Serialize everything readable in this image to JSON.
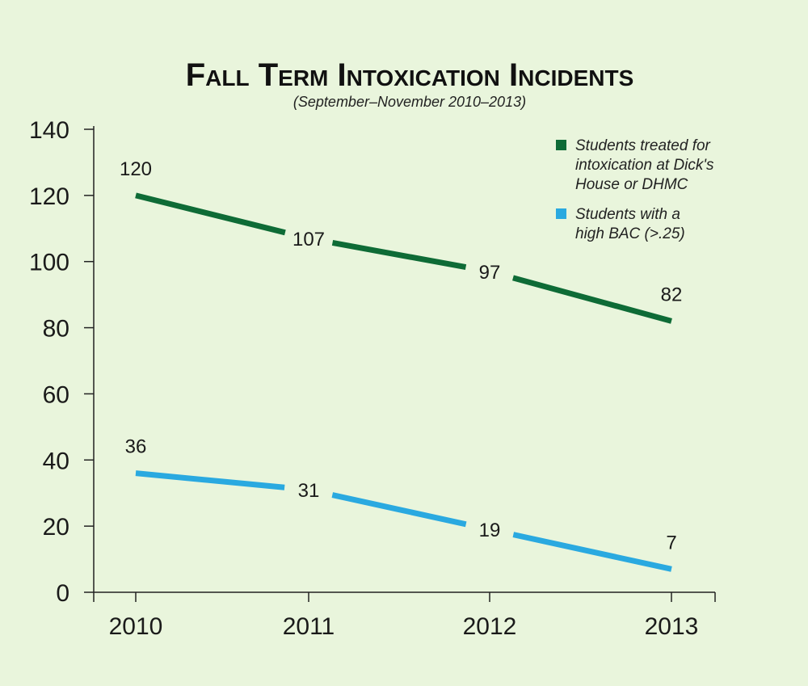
{
  "chart_data": {
    "type": "line",
    "title": "Fall Term Intoxication Incidents",
    "subtitle": "(September–November 2010–2013)",
    "xlabel": "",
    "ylabel": "",
    "categories": [
      "2010",
      "2011",
      "2012",
      "2013"
    ],
    "ylim": [
      0,
      140
    ],
    "yticks": [
      0,
      20,
      40,
      60,
      80,
      100,
      120,
      140
    ],
    "grid": false,
    "legend_position": "top-right",
    "series": [
      {
        "name": "Students treated for intoxication at Dick's House or DHMC",
        "legend_lines": [
          "Students treated for",
          "intoxication at Dick's",
          "House or DHMC"
        ],
        "color": "#0e6b36",
        "values": [
          120,
          107,
          97,
          82
        ]
      },
      {
        "name": "Students with a high BAC (>.25)",
        "legend_lines": [
          "Students with a",
          "high BAC (>.25)"
        ],
        "color": "#2aa9e0",
        "values": [
          36,
          31,
          19,
          7
        ]
      }
    ]
  }
}
